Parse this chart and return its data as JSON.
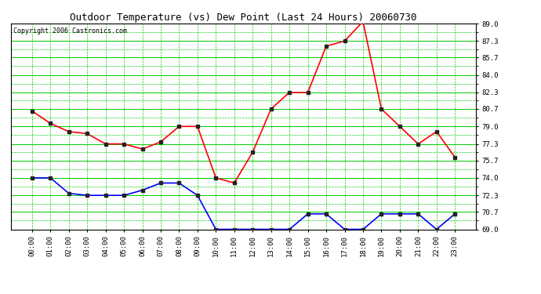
{
  "title": "Outdoor Temperature (vs) Dew Point (Last 24 Hours) 20060730",
  "copyright_text": "Copyright 2006 Castronics.com",
  "x_labels": [
    "00:00",
    "01:00",
    "02:00",
    "03:00",
    "04:00",
    "05:00",
    "06:00",
    "07:00",
    "08:00",
    "09:00",
    "10:00",
    "11:00",
    "12:00",
    "13:00",
    "14:00",
    "15:00",
    "16:00",
    "17:00",
    "18:00",
    "19:00",
    "20:00",
    "21:00",
    "22:00",
    "23:00"
  ],
  "y_ticks": [
    69.0,
    70.7,
    72.3,
    74.0,
    75.7,
    77.3,
    79.0,
    80.7,
    82.3,
    84.0,
    85.7,
    87.3,
    89.0
  ],
  "y_min": 69.0,
  "y_max": 89.0,
  "temp_data": [
    80.5,
    79.3,
    78.5,
    78.3,
    77.3,
    77.3,
    76.8,
    77.5,
    79.0,
    79.0,
    74.0,
    73.5,
    76.5,
    80.7,
    82.3,
    82.3,
    86.8,
    87.3,
    89.2,
    80.7,
    79.0,
    77.3,
    78.5,
    76.0
  ],
  "dew_data": [
    74.0,
    74.0,
    72.5,
    72.3,
    72.3,
    72.3,
    72.8,
    73.5,
    73.5,
    72.3,
    69.0,
    69.0,
    69.0,
    69.0,
    69.0,
    70.5,
    70.5,
    69.0,
    69.0,
    70.5,
    70.5,
    70.5,
    69.0,
    70.5
  ],
  "temp_color": "#ff0000",
  "dew_color": "#0000ff",
  "grid_color_major": "#00cc00",
  "bg_color": "#ffffff",
  "marker": "s",
  "marker_size": 2.5,
  "line_width": 1.2,
  "title_fontsize": 9,
  "axis_fontsize": 6.5,
  "copyright_fontsize": 6
}
